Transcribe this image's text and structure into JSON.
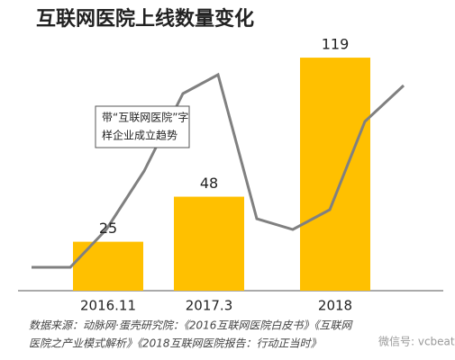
{
  "chart_data": {
    "type": "bar",
    "title": "互联网医院上线数量变化",
    "categories": [
      "2016.11",
      "2017.3",
      "2018"
    ],
    "values": [
      25,
      48,
      119
    ],
    "color": "#ffc000",
    "ylim": [
      0,
      125
    ],
    "annotation": [
      "带“互联网医院”字",
      "样企业成立趋势"
    ],
    "source": [
      "数据来源：动脉网·蛋壳研究院：《2016互联网医院白皮书》《互联网",
      "医院之产业模式解析》《2018互联网医院报告：行动正当时》"
    ],
    "watermark": "微信号: vcbeat"
  }
}
